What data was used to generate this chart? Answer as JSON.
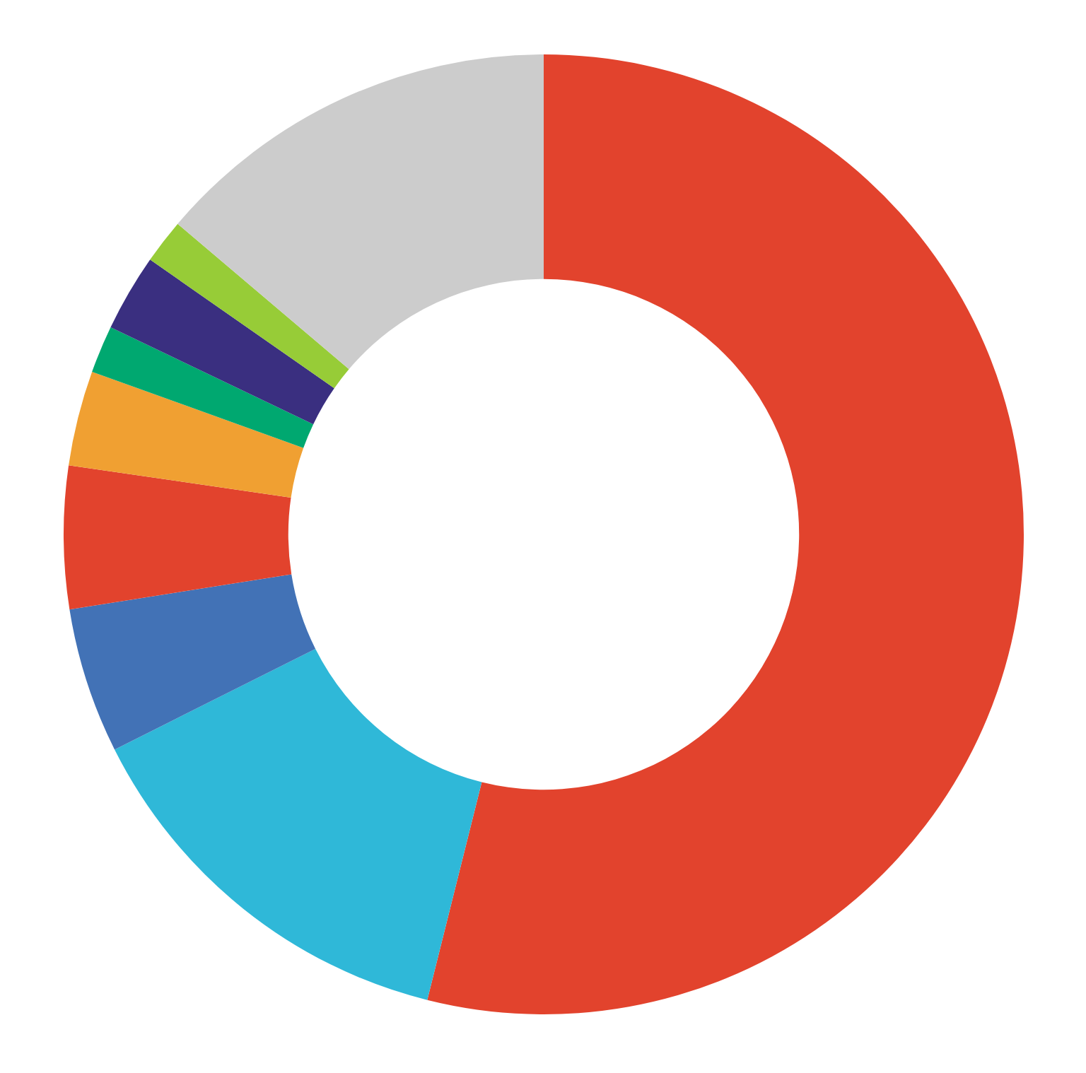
{
  "chart_data": {
    "type": "donut",
    "categories": [
      null,
      null,
      null,
      null,
      null,
      null,
      null,
      null,
      null
    ],
    "values": [
      53.9,
      13.7,
      4.9,
      4.8,
      3.2,
      1.6,
      2.6,
      1.5,
      13.8
    ],
    "colors": [
      "#e2432d",
      "#2fb8d8",
      "#4272b6",
      "#e2432d",
      "#f0a032",
      "#00a870",
      "#3a2f80",
      "#97cc37",
      "#cccccc"
    ]
  }
}
